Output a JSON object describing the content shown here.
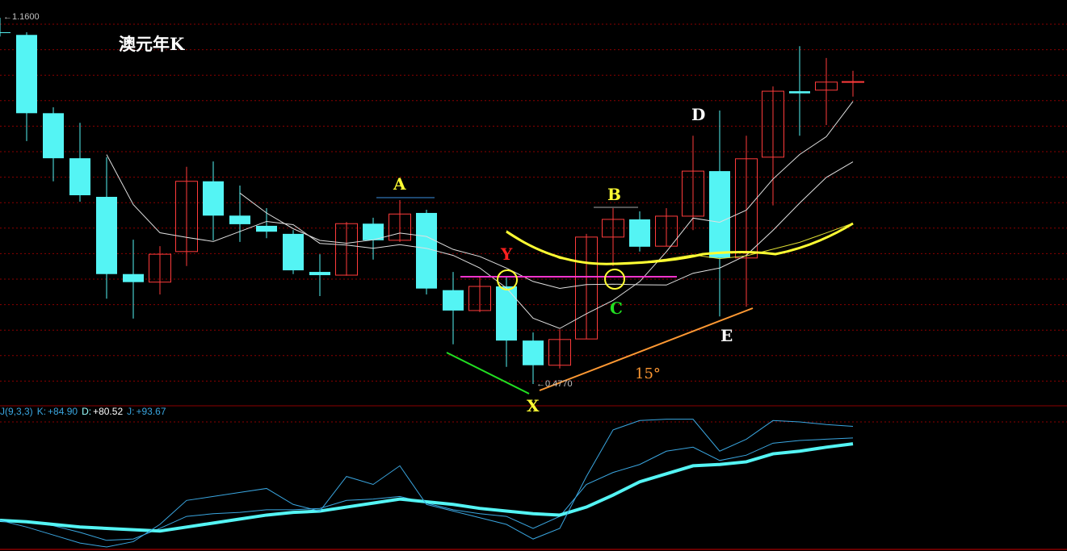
{
  "title": "澳元年K",
  "price_labels": {
    "high": "1.1600",
    "low": "0.4770"
  },
  "indicator": {
    "name": "J(9,3,3)",
    "k_label": "K:",
    "k_value": "+84.90",
    "d_label": "D:",
    "d_value": "+80.52",
    "j_label": "J:",
    "j_value": "+93.67"
  },
  "annotations": {
    "A": "A",
    "B": "B",
    "C": "C",
    "D": "D",
    "E": "E",
    "X": "X",
    "Y": "Y",
    "angle": "15°"
  },
  "colors": {
    "up": "#ff3b3b",
    "down": "#54f4f4",
    "grid": "#8b0000",
    "ma": "#e0e0e0",
    "arc": "#ffff33",
    "k": "#3aa6e0",
    "d": "#54f4f4",
    "j": "#3aa6e0"
  },
  "chart_data": {
    "type": "candlestick",
    "title": "澳元年K",
    "ylim": [
      0.45,
      1.17
    ],
    "candles": [
      {
        "o": 1.133,
        "c": 1.133,
        "h": 1.16,
        "l": 1.125
      },
      {
        "o": 1.128,
        "c": 0.982,
        "h": 1.133,
        "l": 0.93
      },
      {
        "o": 0.982,
        "c": 0.898,
        "h": 0.993,
        "l": 0.855
      },
      {
        "o": 0.898,
        "c": 0.829,
        "h": 0.964,
        "l": 0.817
      },
      {
        "o": 0.826,
        "c": 0.682,
        "h": 0.9,
        "l": 0.636
      },
      {
        "o": 0.682,
        "c": 0.667,
        "h": 0.746,
        "l": 0.599
      },
      {
        "o": 0.667,
        "c": 0.719,
        "h": 0.734,
        "l": 0.644
      },
      {
        "o": 0.724,
        "c": 0.855,
        "h": 0.882,
        "l": 0.697
      },
      {
        "o": 0.855,
        "c": 0.791,
        "h": 0.892,
        "l": 0.745
      },
      {
        "o": 0.791,
        "c": 0.775,
        "h": 0.847,
        "l": 0.742
      },
      {
        "o": 0.772,
        "c": 0.761,
        "h": 0.805,
        "l": 0.749
      },
      {
        "o": 0.757,
        "c": 0.689,
        "h": 0.764,
        "l": 0.682
      },
      {
        "o": 0.686,
        "c": 0.68,
        "h": 0.719,
        "l": 0.641
      },
      {
        "o": 0.68,
        "c": 0.776,
        "h": 0.779,
        "l": 0.679
      },
      {
        "o": 0.776,
        "c": 0.745,
        "h": 0.787,
        "l": 0.709
      },
      {
        "o": 0.745,
        "c": 0.794,
        "h": 0.82,
        "l": 0.742
      },
      {
        "o": 0.796,
        "c": 0.655,
        "h": 0.802,
        "l": 0.644
      },
      {
        "o": 0.652,
        "c": 0.614,
        "h": 0.686,
        "l": 0.551
      },
      {
        "o": 0.614,
        "c": 0.659,
        "h": 0.677,
        "l": 0.611
      },
      {
        "o": 0.659,
        "c": 0.558,
        "h": 0.677,
        "l": 0.509
      },
      {
        "o": 0.558,
        "c": 0.512,
        "h": 0.573,
        "l": 0.477
      },
      {
        "o": 0.512,
        "c": 0.56,
        "h": 0.579,
        "l": 0.506
      },
      {
        "o": 0.561,
        "c": 0.751,
        "h": 0.757,
        "l": 0.561
      },
      {
        "o": 0.751,
        "c": 0.784,
        "h": 0.805,
        "l": 0.697
      },
      {
        "o": 0.784,
        "c": 0.733,
        "h": 0.799,
        "l": 0.724
      },
      {
        "o": 0.734,
        "c": 0.79,
        "h": 0.805,
        "l": 0.734
      },
      {
        "o": 0.79,
        "c": 0.874,
        "h": 0.94,
        "l": 0.764
      },
      {
        "o": 0.874,
        "c": 0.712,
        "h": 0.987,
        "l": 0.603
      },
      {
        "o": 0.712,
        "c": 0.897,
        "h": 0.94,
        "l": 0.621
      },
      {
        "o": 0.9,
        "c": 1.023,
        "h": 1.032,
        "l": 0.81
      },
      {
        "o": 1.023,
        "c": 1.019,
        "h": 1.107,
        "l": 0.94
      },
      {
        "o": 1.025,
        "c": 1.04,
        "h": 1.085,
        "l": 0.96
      },
      {
        "o": 1.04,
        "c": 1.041,
        "h": 1.061,
        "l": 1.013
      }
    ],
    "indicator": {
      "name": "KDJ",
      "ylim": [
        0,
        100
      ],
      "series": [
        {
          "name": "K",
          "values": [
            23,
            22,
            19,
            14,
            8,
            9,
            17,
            26,
            28,
            29,
            31,
            31,
            32,
            38,
            39,
            41,
            36,
            31,
            28,
            26,
            17,
            26,
            50,
            59,
            65,
            75,
            78,
            68,
            72,
            81,
            83,
            84,
            84.9
          ]
        },
        {
          "name": "D",
          "values": [
            23,
            22,
            20,
            18,
            17,
            16,
            15,
            18,
            21,
            24,
            27,
            29,
            30,
            33,
            36,
            39,
            37,
            35,
            32,
            30,
            28,
            27,
            33,
            42,
            52,
            58,
            64,
            65,
            67,
            73,
            75,
            78,
            80.52
          ]
        },
        {
          "name": "J",
          "values": [
            23,
            18,
            12,
            6,
            3,
            7,
            20,
            38,
            41,
            44,
            47,
            35,
            30,
            56,
            50,
            64,
            35,
            30,
            25,
            20,
            9,
            17,
            56,
            91,
            98,
            99,
            99,
            75,
            84,
            98,
            97,
            95,
            93.67
          ]
        }
      ]
    },
    "grid": true
  }
}
